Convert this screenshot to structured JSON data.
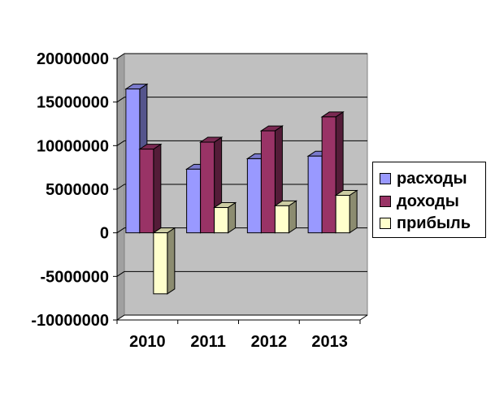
{
  "chart_data": {
    "type": "bar",
    "title": "",
    "xlabel": "",
    "ylabel": "",
    "categories": [
      "2010",
      "2011",
      "2012",
      "2013"
    ],
    "series": [
      {
        "name": "расходы",
        "values": [
          16500000,
          7300000,
          8500000,
          8800000
        ],
        "color": "#9999FF"
      },
      {
        "name": "доходы",
        "values": [
          9600000,
          10400000,
          11700000,
          13300000
        ],
        "color": "#993366"
      },
      {
        "name": "прибыль",
        "values": [
          -7000000,
          2900000,
          3100000,
          4300000
        ],
        "color": "#FFFFCC"
      }
    ],
    "ylim": [
      -10000000,
      20000000
    ],
    "yticks": [
      "20000000",
      "15000000",
      "10000000",
      "5000000",
      "0",
      "-5000000",
      "-10000000"
    ],
    "grid": true,
    "legend_position": "right",
    "plot_background": "#C0C0C0"
  }
}
